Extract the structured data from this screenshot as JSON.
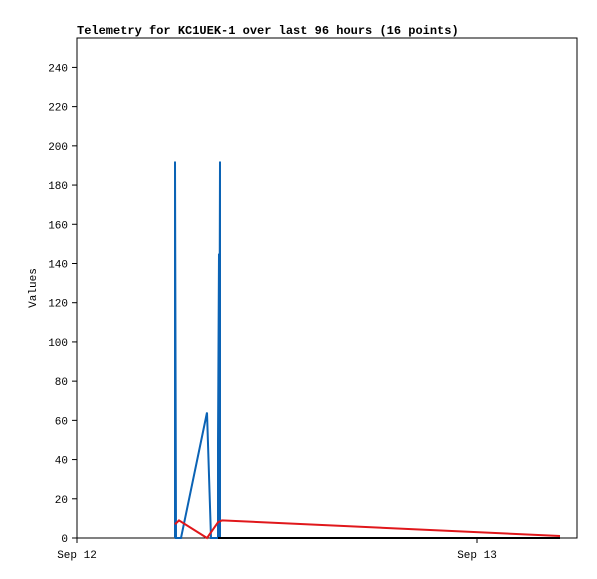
{
  "chart_data": {
    "type": "line",
    "title": "Telemetry for KC1UEK-1 over last 96 hours (16 points)",
    "y_label": "Values",
    "xlim": [
      0,
      30
    ],
    "xticks": [
      {
        "value": 0,
        "label": "Sep 12"
      },
      {
        "value": 24,
        "label": "Sep 13"
      }
    ],
    "ylim": [
      0,
      255
    ],
    "yticks": [
      0,
      20,
      40,
      60,
      80,
      100,
      120,
      140,
      160,
      180,
      200,
      220,
      240
    ],
    "series": [
      {
        "color": "#0b63b5",
        "x": [
          5.88,
          5.88,
          5.94,
          6.24,
          7.8,
          8.04,
          8.46,
          8.46,
          8.52,
          8.52,
          8.58,
          8.58
        ],
        "values": [
          0,
          192,
          0,
          0,
          64,
          0,
          0,
          48,
          145,
          0,
          192,
          0
        ]
      },
      {
        "color": "#e0171b",
        "x": [
          5.88,
          6.12,
          7.8,
          8.46,
          8.7,
          28.98
        ],
        "values": [
          7,
          9,
          0,
          8,
          9,
          1
        ]
      },
      {
        "color": "#000000",
        "x": [
          8.46,
          28.98
        ],
        "values": [
          0,
          0
        ]
      }
    ]
  }
}
